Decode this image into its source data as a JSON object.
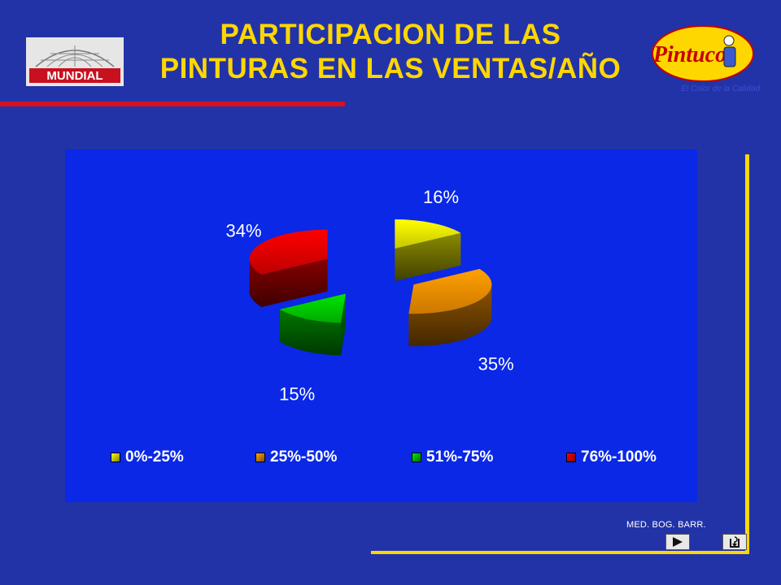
{
  "title": {
    "line1": "PARTICIPACION DE LAS",
    "line2": "PINTURAS EN LAS VENTAS/AÑO"
  },
  "logos": {
    "left": "MUNDIAL",
    "right": "Pintuco",
    "right_tagline": "El Color de la Calidad"
  },
  "footer": {
    "text": "MED. BOG. BARR."
  },
  "nav": {
    "next_icon": "next-arrow-icon",
    "return_icon": "return-icon"
  },
  "colors": {
    "background": "#2233a8",
    "chart_background": "#0a28e6",
    "title": "#ffd700",
    "accent_rule": "#d4121e"
  },
  "chart_data": {
    "type": "pie",
    "style": "3d-exploded",
    "title": "",
    "slices": [
      {
        "label": "0%-25%",
        "value": 16,
        "display": "16%",
        "color": "#e8e800"
      },
      {
        "label": "25%-50%",
        "value": 35,
        "display": "35%",
        "color": "#f08c00"
      },
      {
        "label": "51%-75%",
        "value": 15,
        "display": "15%",
        "color": "#00c800"
      },
      {
        "label": "76%-100%",
        "value": 34,
        "display": "34%",
        "color": "#e00000"
      }
    ],
    "legend_position": "bottom"
  }
}
